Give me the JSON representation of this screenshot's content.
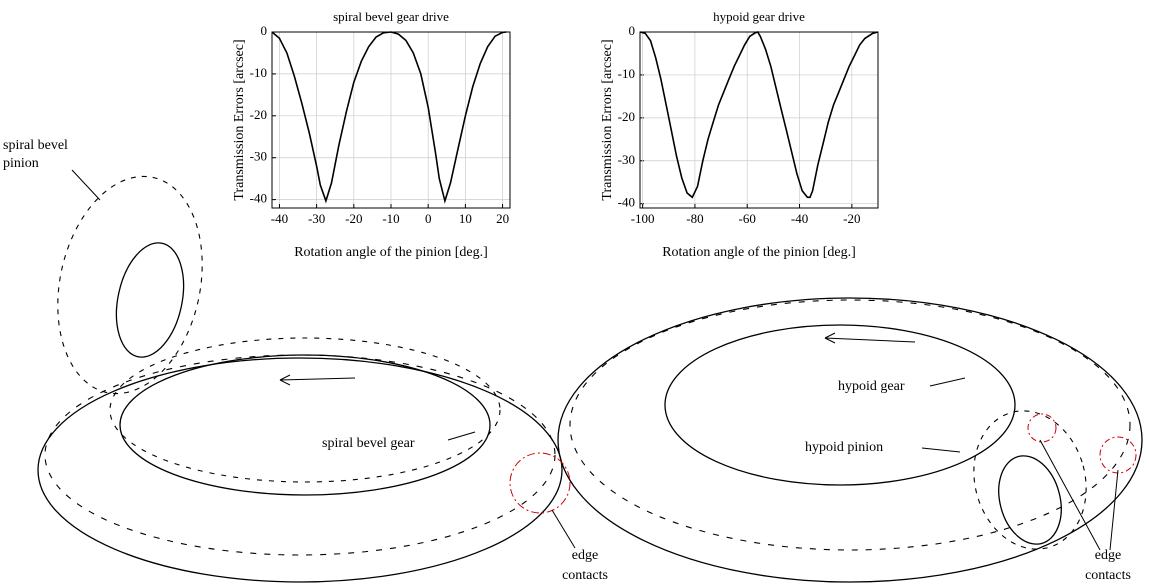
{
  "chart_data": [
    {
      "type": "line",
      "title": "spiral bevel gear drive",
      "xlabel": "Rotation angle of the pinion [deg.]",
      "ylabel": "Transmission Errors [arcsec]",
      "x": [
        -42,
        -40,
        -38,
        -36,
        -34,
        -32,
        -30,
        -29,
        -27.5,
        -26,
        -24,
        -22,
        -20,
        -18,
        -16,
        -14,
        -12,
        -10,
        -8,
        -6,
        -4,
        -2,
        0,
        2,
        3,
        4.5,
        6,
        8,
        10,
        12,
        14,
        16,
        18,
        20,
        21
      ],
      "values": [
        0,
        -1.5,
        -5,
        -10.5,
        -17,
        -24,
        -32,
        -36.5,
        -40.3,
        -36,
        -27,
        -19,
        -12,
        -7,
        -3.5,
        -1.2,
        -0.2,
        0,
        -0.5,
        -2,
        -5,
        -10,
        -18,
        -29,
        -35,
        -40.3,
        -36,
        -28,
        -20,
        -13,
        -7.5,
        -3.5,
        -1,
        -0.1,
        0
      ],
      "color": "#000000",
      "xlim": [
        -42,
        22
      ],
      "xticks": [
        -40,
        -30,
        -20,
        -10,
        0,
        10,
        20
      ],
      "ylim": [
        -42,
        0
      ],
      "yticks": [
        0,
        -10,
        -20,
        -30,
        -40
      ],
      "grid": true
    },
    {
      "type": "line",
      "title": "hypoid gear drive",
      "xlabel": "Rotation angle of the pinion [deg.]",
      "ylabel": "Transmission Errors [arcsec]",
      "x": [
        -101,
        -99,
        -97,
        -95,
        -93,
        -91,
        -89,
        -87,
        -85,
        -83,
        -81,
        -79,
        -77,
        -75,
        -73,
        -71,
        -69,
        -67,
        -65,
        -63,
        -61,
        -59,
        -57,
        -56,
        -55,
        -53,
        -51,
        -49,
        -47,
        -45,
        -43,
        -41,
        -39,
        -37,
        -36,
        -35,
        -33,
        -31,
        -29,
        -27,
        -25,
        -23,
        -21,
        -19,
        -17,
        -15,
        -12,
        -10
      ],
      "values": [
        0,
        -0.3,
        -2,
        -6,
        -11,
        -17,
        -23,
        -29,
        -34,
        -37.5,
        -38.5,
        -36,
        -30,
        -25,
        -21,
        -17,
        -14,
        -11,
        -8,
        -5.5,
        -3,
        -1,
        -0.2,
        0,
        -1,
        -4,
        -8,
        -13,
        -18,
        -23,
        -28,
        -33,
        -37,
        -38.5,
        -38.5,
        -37,
        -31,
        -26,
        -21,
        -17,
        -14,
        -11,
        -8,
        -5.5,
        -3,
        -1.5,
        -0.3,
        0
      ],
      "color": "#000000",
      "xlim": [
        -101,
        -10
      ],
      "xticks": [
        -100,
        -80,
        -60,
        -40,
        -20
      ],
      "ylim": [
        -41,
        0
      ],
      "yticks": [
        0,
        -10,
        -20,
        -30,
        -40
      ],
      "grid": true
    }
  ],
  "figure_labels": {
    "pinion_left_1": "spiral bevel",
    "pinion_left_2": "pinion",
    "gear_left": "spiral bevel gear",
    "edge_left_1": "edge",
    "edge_left_2": "contacts",
    "gear_right": "hypoid gear",
    "pinion_right": "hypoid pinion",
    "edge_right_1": "edge",
    "edge_right_2": "contacts"
  }
}
